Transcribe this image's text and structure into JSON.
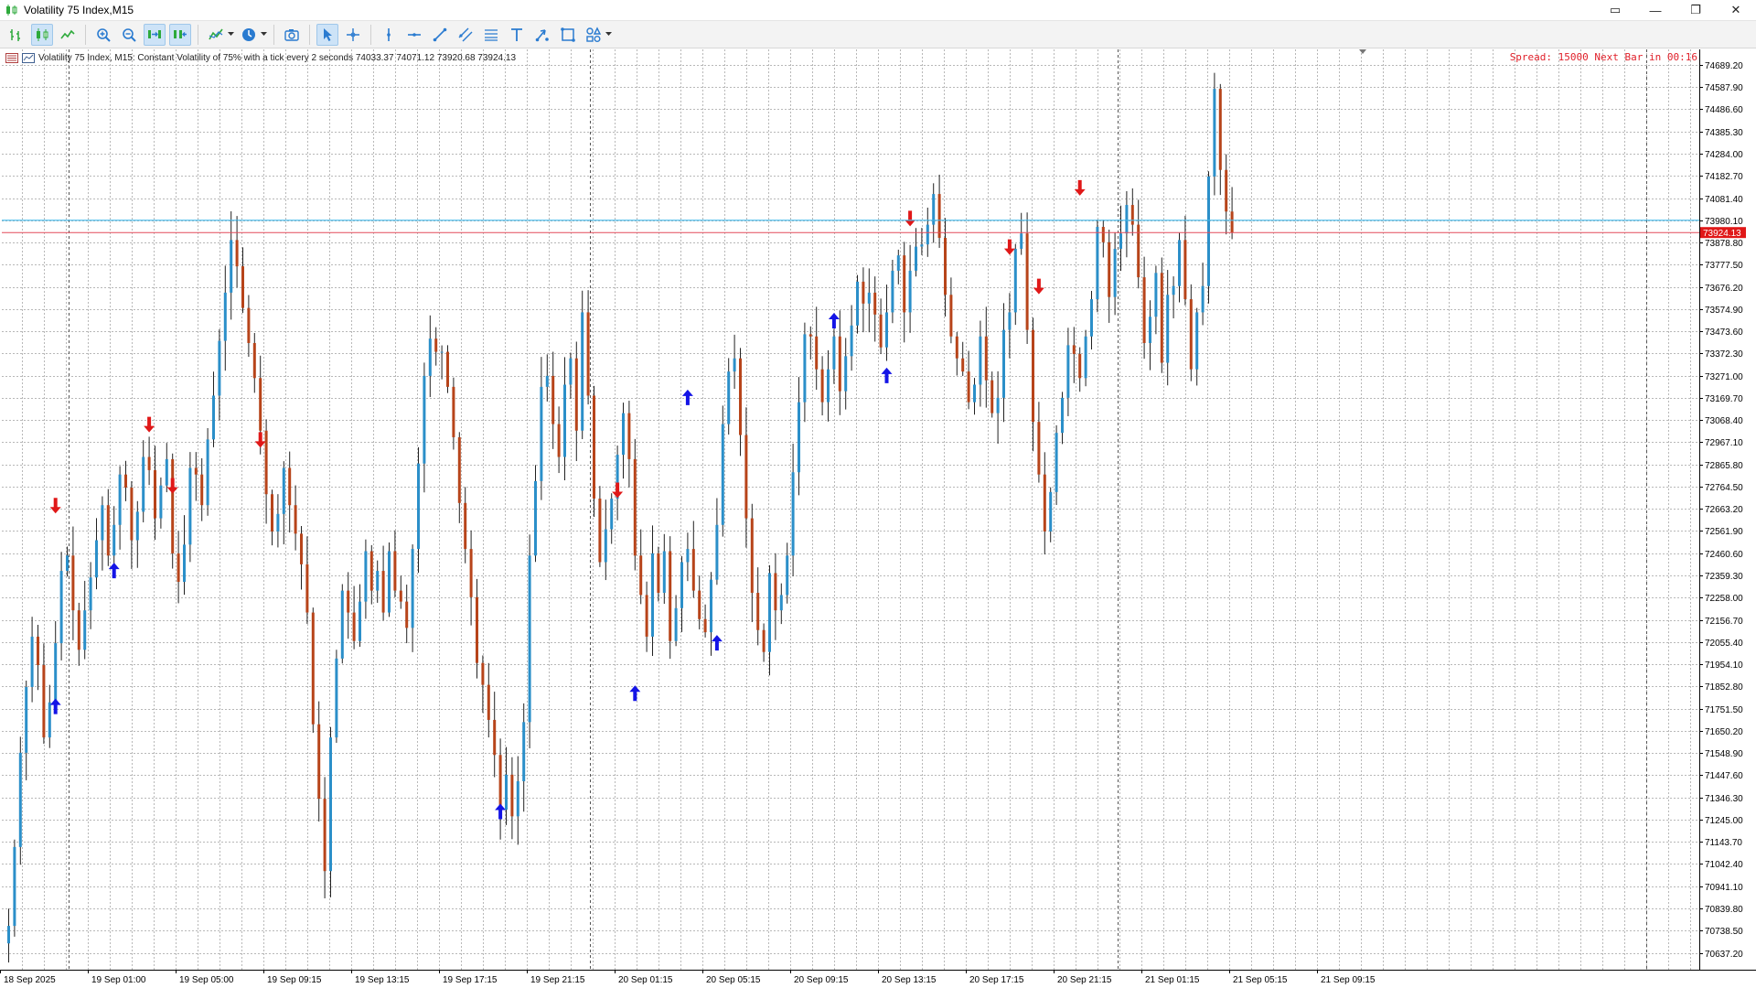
{
  "window": {
    "title": "Volatility 75 Index,M15",
    "accent": "#2eaa3c",
    "controls": [
      {
        "name": "restore-panel-icon",
        "glyph": "▭"
      },
      {
        "name": "minimize-icon",
        "glyph": "—"
      },
      {
        "name": "maximize-icon",
        "glyph": "❐"
      },
      {
        "name": "close-icon",
        "glyph": "✕"
      }
    ]
  },
  "toolbar": {
    "buttons": [
      {
        "name": "bar-chart-icon",
        "active": false
      },
      {
        "name": "candlestick-chart-icon",
        "active": true
      },
      {
        "name": "line-chart-icon",
        "active": false
      },
      {
        "sep": true
      },
      {
        "name": "zoom-in-icon",
        "active": false
      },
      {
        "name": "zoom-out-icon",
        "active": false
      },
      {
        "name": "auto-scroll-icon",
        "active": true
      },
      {
        "name": "chart-shift-icon",
        "active": true
      },
      {
        "sep": true
      },
      {
        "name": "indicators-icon",
        "active": false,
        "dropdown": true
      },
      {
        "name": "periods-clock-icon",
        "active": false,
        "dropdown": true
      },
      {
        "sep": true
      },
      {
        "name": "screenshot-icon",
        "active": false
      },
      {
        "sep": true
      },
      {
        "name": "cursor-icon",
        "active": true
      },
      {
        "name": "crosshair-icon",
        "active": false
      },
      {
        "sep": true
      },
      {
        "name": "vertical-line-icon",
        "active": false
      },
      {
        "name": "horizontal-line-icon",
        "active": false
      },
      {
        "name": "trend-line-icon",
        "active": false
      },
      {
        "name": "equidistant-channel-icon",
        "active": false
      },
      {
        "name": "fibonacci-icon",
        "active": false
      },
      {
        "name": "text-icon",
        "active": false
      },
      {
        "name": "arrow-tool-icon",
        "active": false
      },
      {
        "name": "shapes-icon",
        "active": false
      },
      {
        "name": "objects-icon",
        "active": false,
        "dropdown": true
      }
    ]
  },
  "chart": {
    "info_text": "Volatility 75 Index, M15:  Constant Volatility of 75% with a tick every 2 seconds  74033.37 74071.12 73920.68 73924.13",
    "spread_text": "Spread: 15000 Next Bar in 00:16",
    "current_price_label": "73924.13",
    "colors": {
      "bull": "#2b8fc9",
      "bear": "#b7441a",
      "up_arrow": "#1414e6",
      "down_arrow": "#e01818",
      "bid_line": "#e34b5a",
      "ask_line": "#3fb7ea",
      "grid": "#b8b8b8",
      "price_tag": "#e01818"
    }
  },
  "chart_data": {
    "type": "candlestick",
    "symbol": "Volatility 75 Index",
    "timeframe": "M15",
    "ylim": [
      70560,
      74760
    ],
    "current_price": 73924.13,
    "ask_price": 73980.1,
    "price_ticks": [
      "74689.20",
      "74587.90",
      "74486.60",
      "74385.30",
      "74284.00",
      "74182.70",
      "74081.40",
      "73980.10",
      "73878.80",
      "73777.50",
      "73676.20",
      "73574.90",
      "73473.60",
      "73372.30",
      "73271.00",
      "73169.70",
      "73068.40",
      "72967.10",
      "72865.80",
      "72764.50",
      "72663.20",
      "72561.90",
      "72460.60",
      "72359.30",
      "72258.00",
      "72156.70",
      "72055.40",
      "71954.10",
      "71852.80",
      "71751.50",
      "71650.20",
      "71548.90",
      "71447.60",
      "71346.30",
      "71245.00",
      "71143.70",
      "71042.40",
      "70941.10",
      "70839.80",
      "70738.50",
      "70637.20"
    ],
    "time_ticks": [
      "18 Sep 2025",
      "19 Sep 01:00",
      "19 Sep 05:00",
      "19 Sep 09:15",
      "19 Sep 13:15",
      "19 Sep 17:15",
      "19 Sep 21:15",
      "20 Sep 01:15",
      "20 Sep 05:15",
      "20 Sep 09:15",
      "20 Sep 13:15",
      "20 Sep 17:15",
      "20 Sep 21:15",
      "21 Sep 01:15",
      "21 Sep 05:15",
      "21 Sep 09:15"
    ],
    "closes": [
      70760,
      71120,
      71550,
      71850,
      72080,
      71950,
      71620,
      71780,
      72050,
      72380,
      72450,
      72200,
      72020,
      72200,
      72350,
      72520,
      72680,
      72450,
      72590,
      72820,
      72760,
      72520,
      72650,
      72900,
      72840,
      72620,
      72770,
      72890,
      72460,
      72330,
      72500,
      72850,
      72820,
      72680,
      72980,
      73180,
      73430,
      73650,
      73890,
      73770,
      73580,
      73420,
      73260,
      73020,
      72730,
      72560,
      72640,
      72850,
      72680,
      72550,
      72410,
      72190,
      71680,
      71340,
      71010,
      71620,
      71980,
      72290,
      72190,
      72060,
      72240,
      72470,
      72290,
      72380,
      72190,
      72470,
      72290,
      72240,
      72120,
      72480,
      72870,
      73270,
      73440,
      73380,
      73380,
      73220,
      72990,
      72690,
      72480,
      72260,
      71960,
      71860,
      71700,
      71540,
      71290,
      71450,
      71260,
      71420,
      71690,
      72450,
      72790,
      73220,
      73270,
      73050,
      72900,
      73230,
      73350,
      73020,
      73560,
      73180,
      72710,
      72420,
      72570,
      72710,
      72910,
      73100,
      72890,
      72450,
      72270,
      72080,
      72460,
      72280,
      72470,
      72060,
      72210,
      72420,
      72480,
      72290,
      72160,
      72100,
      72340,
      72590,
      73050,
      73290,
      73350,
      73000,
      72620,
      72280,
      72110,
      72010,
      72370,
      72200,
      72270,
      72450,
      72830,
      73150,
      73460,
      73450,
      73300,
      73150,
      73300,
      73450,
      73200,
      73360,
      73500,
      73700,
      73600,
      73650,
      73550,
      73400,
      73560,
      73750,
      73820,
      73560,
      73750,
      73860,
      73870,
      73960,
      74100,
      73900,
      73640,
      73450,
      73350,
      73290,
      73150,
      73230,
      73450,
      73250,
      73100,
      73170,
      73480,
      73560,
      73850,
      73920,
      73480,
      73060,
      72820,
      72560,
      72740,
      73010,
      73170,
      73410,
      73370,
      73260,
      73450,
      73620,
      73950,
      73880,
      73630,
      73850,
      73920,
      74050,
      73960,
      73720,
      73420,
      73540,
      73740,
      73330,
      73640,
      73680,
      73890,
      73620,
      73300,
      73560,
      73680,
      74180,
      74580,
      74210,
      74020,
      73924
    ]
  }
}
